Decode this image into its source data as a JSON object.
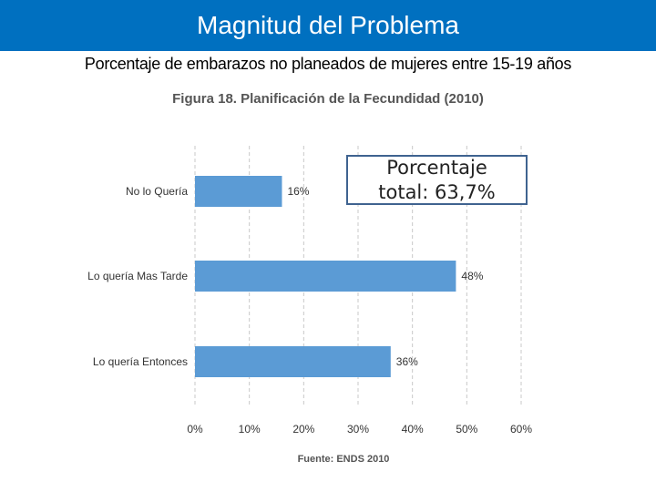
{
  "header": {
    "title": "Magnitud del Problema",
    "subtitle": "Porcentaje de embarazos no planeados de mujeres entre 15-19 años"
  },
  "callout": {
    "line1": "Porcentaje",
    "line2": "total: 63,7%"
  },
  "colors": {
    "header_bg": "#0070c0",
    "bar": "#5b9bd5"
  },
  "chart_data": {
    "type": "bar",
    "orientation": "horizontal",
    "title": "Figura 18. Planificación de la Fecundidad (2010)",
    "categories": [
      "No lo Quería",
      "Lo quería Mas Tarde",
      "Lo quería Entonces"
    ],
    "values": [
      16,
      48,
      36
    ],
    "value_labels": [
      "16%",
      "48%",
      "36%"
    ],
    "xlim": [
      0,
      60
    ],
    "xticks": [
      "0%",
      "10%",
      "20%",
      "30%",
      "40%",
      "50%",
      "60%"
    ],
    "grid": "vertical-dashed",
    "source": "Fuente: ENDS 2010"
  }
}
